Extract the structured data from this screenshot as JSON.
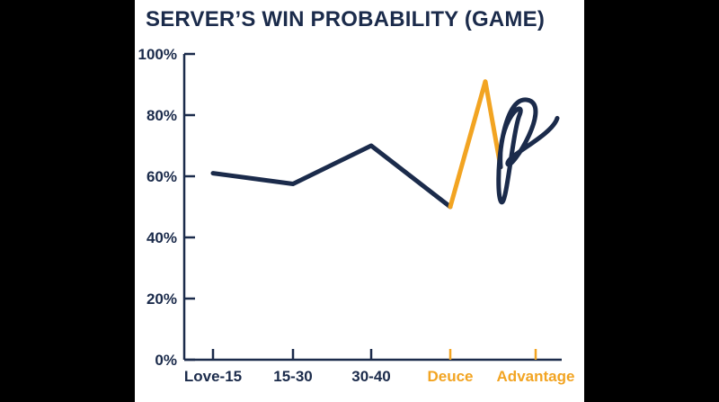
{
  "colors": {
    "page_background": "#000000",
    "chart_background": "#ffffff",
    "navy": "#1b2b4b",
    "orange": "#f2a422"
  },
  "chart_data": {
    "type": "line",
    "title": "SERVER’S WIN PROBABILITY (GAME)",
    "xlabel": "",
    "ylabel": "",
    "categories": [
      "Love-15",
      "15-30",
      "30-40",
      "Deuce",
      "Advantage"
    ],
    "category_colors": [
      "#1b2b4b",
      "#1b2b4b",
      "#1b2b4b",
      "#f2a422",
      "#f2a422"
    ],
    "ylim": [
      0,
      100
    ],
    "y_ticks": [
      0,
      20,
      40,
      60,
      80,
      100
    ],
    "y_tick_labels": [
      "0%",
      "20%",
      "40%",
      "60%",
      "80%",
      "100%"
    ],
    "grid": false,
    "series": [
      {
        "color": "#1b2b4b",
        "points": [
          {
            "x": "Love-15",
            "y": 61
          },
          {
            "x": "15-30",
            "y": 57.5
          },
          {
            "x": "30-40",
            "y": 70
          },
          {
            "x": "Deuce",
            "y": 50
          }
        ]
      },
      {
        "color": "#f2a422",
        "points": [
          {
            "x": "Deuce",
            "y": 50
          },
          {
            "x": "Advantage",
            "y": 91
          },
          {
            "x": "Advantage",
            "y": 63
          }
        ]
      },
      {
        "color": "#1b2b4b",
        "style": "scribble-loops",
        "points": [
          {
            "x": "Advantage",
            "y": 63
          },
          {
            "x": "Advantage",
            "y": 80
          },
          {
            "x": "Advantage",
            "y": 52
          },
          {
            "x": "Advantage",
            "y": 85
          },
          {
            "x": "Advantage",
            "y": 64
          },
          {
            "x": "Advantage",
            "y": 79
          }
        ]
      }
    ]
  }
}
